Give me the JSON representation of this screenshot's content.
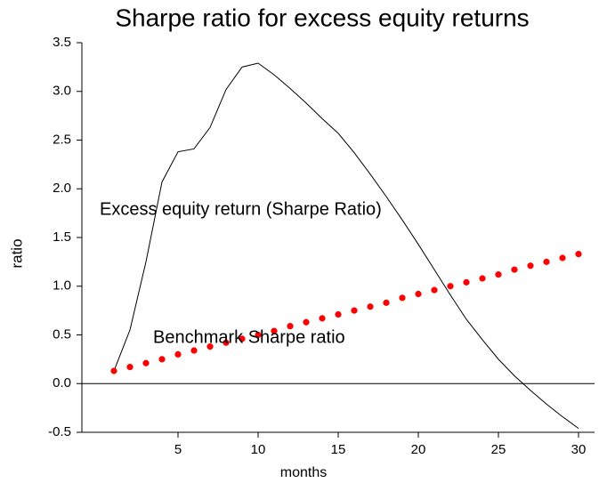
{
  "chart_data": {
    "type": "line",
    "title": "Sharpe ratio for excess equity returns",
    "x_label": "months",
    "y_label": "ratio",
    "x": [
      1,
      2,
      3,
      4,
      5,
      6,
      7,
      8,
      9,
      10,
      11,
      12,
      13,
      14,
      15,
      16,
      17,
      18,
      19,
      20,
      21,
      22,
      23,
      24,
      25,
      26,
      27,
      28,
      29,
      30
    ],
    "series": [
      {
        "name": "Excess equity return (Sharpe Ratio)",
        "color": "#000000",
        "style": "line",
        "values": [
          0.13,
          0.55,
          1.25,
          2.07,
          2.38,
          2.41,
          2.63,
          3.02,
          3.25,
          3.29,
          3.17,
          3.03,
          2.88,
          2.72,
          2.57,
          2.37,
          2.15,
          1.92,
          1.68,
          1.43,
          1.17,
          0.91,
          0.66,
          0.45,
          0.25,
          0.08,
          -0.07,
          -0.21,
          -0.34,
          -0.46
        ]
      },
      {
        "name": "Benchmark Sharpe ratio",
        "color": "#ff0000",
        "style": "dots",
        "values": [
          0.13,
          0.17,
          0.21,
          0.25,
          0.3,
          0.34,
          0.38,
          0.42,
          0.46,
          0.5,
          0.54,
          0.59,
          0.63,
          0.67,
          0.71,
          0.75,
          0.79,
          0.83,
          0.88,
          0.92,
          0.96,
          1.0,
          1.04,
          1.08,
          1.12,
          1.17,
          1.21,
          1.25,
          1.29,
          1.33
        ]
      }
    ],
    "xlim": [
      -1,
      31
    ],
    "xticks": [
      5,
      10,
      15,
      20,
      25,
      30
    ],
    "ylim": [
      -0.5,
      3.5
    ],
    "yticks": [
      -0.5,
      {
        "value": 0,
        "label": "0.0"
      },
      0.5,
      {
        "value": 1,
        "label": "1.0"
      },
      1.5,
      {
        "value": 2,
        "label": "2.0"
      },
      2.5,
      {
        "value": 3,
        "label": "3.0"
      },
      3.5
    ],
    "zero_line": true
  }
}
